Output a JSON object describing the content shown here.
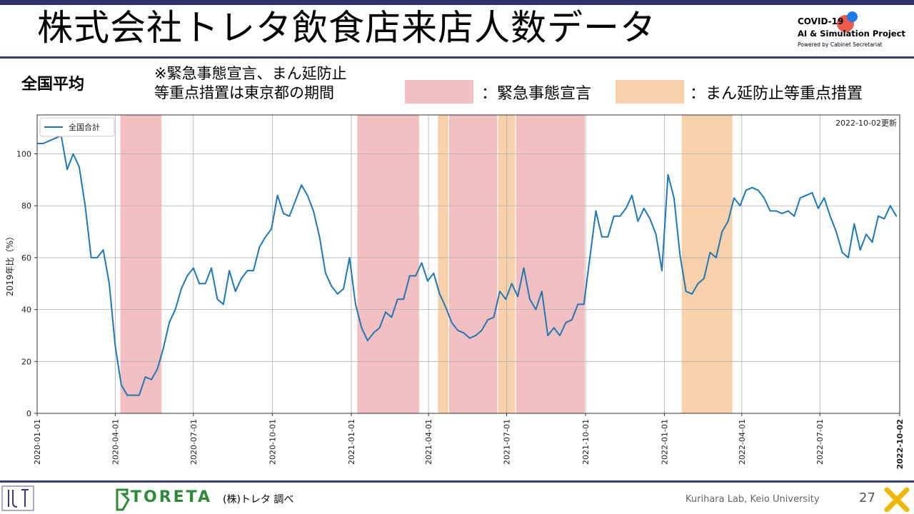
{
  "header": {
    "title": "株式会社トレタ飲食店来店人数データ",
    "covid_logo": {
      "line1": "COVID-19",
      "line2": "AI & Simulation Project",
      "line3": "Powered by Cabinet Secretariat"
    }
  },
  "region_label": "全国平均",
  "note_lines": [
    "※緊急事態宣言、まん延防止",
    "等重点措置は東京都の期間"
  ],
  "legend": {
    "emergency_label": "：緊急事態宣言",
    "emergency_color": "#f4bfc2",
    "semi_label": "：まん延防止等重点措置",
    "semi_color": "#f8d1ac"
  },
  "chart_data": {
    "type": "line",
    "series": [
      {
        "name": "全国合計",
        "color": "#1f77b4",
        "points": [
          [
            "2020-01-01",
            104
          ],
          [
            "2020-01-08",
            104
          ],
          [
            "2020-01-15",
            105
          ],
          [
            "2020-01-22",
            106
          ],
          [
            "2020-01-29",
            107
          ],
          [
            "2020-02-05",
            94
          ],
          [
            "2020-02-12",
            100
          ],
          [
            "2020-02-19",
            95
          ],
          [
            "2020-02-26",
            80
          ],
          [
            "2020-03-04",
            60
          ],
          [
            "2020-03-11",
            60
          ],
          [
            "2020-03-18",
            63
          ],
          [
            "2020-03-25",
            50
          ],
          [
            "2020-04-01",
            26
          ],
          [
            "2020-04-08",
            11
          ],
          [
            "2020-04-15",
            7
          ],
          [
            "2020-04-22",
            7
          ],
          [
            "2020-04-29",
            7
          ],
          [
            "2020-05-06",
            14
          ],
          [
            "2020-05-13",
            13
          ],
          [
            "2020-05-20",
            17
          ],
          [
            "2020-05-27",
            25
          ],
          [
            "2020-06-03",
            35
          ],
          [
            "2020-06-10",
            40
          ],
          [
            "2020-06-17",
            48
          ],
          [
            "2020-06-24",
            53
          ],
          [
            "2020-07-01",
            56
          ],
          [
            "2020-07-08",
            50
          ],
          [
            "2020-07-15",
            50
          ],
          [
            "2020-07-22",
            56
          ],
          [
            "2020-07-29",
            44
          ],
          [
            "2020-08-05",
            42
          ],
          [
            "2020-08-12",
            55
          ],
          [
            "2020-08-19",
            47
          ],
          [
            "2020-08-26",
            52
          ],
          [
            "2020-09-02",
            55
          ],
          [
            "2020-09-09",
            55
          ],
          [
            "2020-09-16",
            64
          ],
          [
            "2020-09-23",
            68
          ],
          [
            "2020-09-30",
            71
          ],
          [
            "2020-10-07",
            84
          ],
          [
            "2020-10-14",
            77
          ],
          [
            "2020-10-21",
            76
          ],
          [
            "2020-10-28",
            82
          ],
          [
            "2020-11-04",
            88
          ],
          [
            "2020-11-11",
            84
          ],
          [
            "2020-11-18",
            78
          ],
          [
            "2020-11-25",
            68
          ],
          [
            "2020-12-02",
            54
          ],
          [
            "2020-12-09",
            49
          ],
          [
            "2020-12-16",
            46
          ],
          [
            "2020-12-23",
            48
          ],
          [
            "2020-12-30",
            60
          ],
          [
            "2021-01-06",
            42
          ],
          [
            "2021-01-13",
            33
          ],
          [
            "2021-01-20",
            28
          ],
          [
            "2021-01-27",
            31
          ],
          [
            "2021-02-03",
            33
          ],
          [
            "2021-02-10",
            39
          ],
          [
            "2021-02-17",
            37
          ],
          [
            "2021-02-24",
            44
          ],
          [
            "2021-03-03",
            44
          ],
          [
            "2021-03-10",
            53
          ],
          [
            "2021-03-17",
            53
          ],
          [
            "2021-03-24",
            58
          ],
          [
            "2021-03-31",
            51
          ],
          [
            "2021-04-07",
            54
          ],
          [
            "2021-04-14",
            46
          ],
          [
            "2021-04-21",
            41
          ],
          [
            "2021-04-28",
            35
          ],
          [
            "2021-05-05",
            32
          ],
          [
            "2021-05-12",
            31
          ],
          [
            "2021-05-19",
            29
          ],
          [
            "2021-05-26",
            30
          ],
          [
            "2021-06-02",
            32
          ],
          [
            "2021-06-09",
            36
          ],
          [
            "2021-06-16",
            37
          ],
          [
            "2021-06-23",
            47
          ],
          [
            "2021-06-30",
            44
          ],
          [
            "2021-07-07",
            50
          ],
          [
            "2021-07-14",
            45
          ],
          [
            "2021-07-21",
            56
          ],
          [
            "2021-07-28",
            44
          ],
          [
            "2021-08-04",
            40
          ],
          [
            "2021-08-11",
            47
          ],
          [
            "2021-08-18",
            30
          ],
          [
            "2021-08-25",
            33
          ],
          [
            "2021-09-01",
            30
          ],
          [
            "2021-09-08",
            35
          ],
          [
            "2021-09-15",
            36
          ],
          [
            "2021-09-22",
            42
          ],
          [
            "2021-09-29",
            42
          ],
          [
            "2021-10-06",
            60
          ],
          [
            "2021-10-13",
            78
          ],
          [
            "2021-10-20",
            68
          ],
          [
            "2021-10-27",
            68
          ],
          [
            "2021-11-03",
            76
          ],
          [
            "2021-11-10",
            76
          ],
          [
            "2021-11-17",
            79
          ],
          [
            "2021-11-24",
            84
          ],
          [
            "2021-12-01",
            74
          ],
          [
            "2021-12-08",
            79
          ],
          [
            "2021-12-15",
            75
          ],
          [
            "2021-12-22",
            69
          ],
          [
            "2021-12-29",
            55
          ],
          [
            "2022-01-05",
            92
          ],
          [
            "2022-01-12",
            83
          ],
          [
            "2022-01-19",
            61
          ],
          [
            "2022-01-26",
            47
          ],
          [
            "2022-02-02",
            46
          ],
          [
            "2022-02-09",
            50
          ],
          [
            "2022-02-16",
            52
          ],
          [
            "2022-02-23",
            62
          ],
          [
            "2022-03-02",
            60
          ],
          [
            "2022-03-09",
            70
          ],
          [
            "2022-03-16",
            74
          ],
          [
            "2022-03-23",
            83
          ],
          [
            "2022-03-30",
            80
          ],
          [
            "2022-04-06",
            86
          ],
          [
            "2022-04-13",
            87
          ],
          [
            "2022-04-20",
            86
          ],
          [
            "2022-04-27",
            83
          ],
          [
            "2022-05-04",
            78
          ],
          [
            "2022-05-11",
            78
          ],
          [
            "2022-05-18",
            77
          ],
          [
            "2022-05-25",
            78
          ],
          [
            "2022-06-01",
            76
          ],
          [
            "2022-06-08",
            83
          ],
          [
            "2022-06-15",
            84
          ],
          [
            "2022-06-22",
            85
          ],
          [
            "2022-06-29",
            79
          ],
          [
            "2022-07-06",
            83
          ],
          [
            "2022-07-13",
            76
          ],
          [
            "2022-07-20",
            70
          ],
          [
            "2022-07-27",
            62
          ],
          [
            "2022-08-03",
            60
          ],
          [
            "2022-08-10",
            73
          ],
          [
            "2022-08-17",
            63
          ],
          [
            "2022-08-24",
            69
          ],
          [
            "2022-08-31",
            66
          ],
          [
            "2022-09-07",
            76
          ],
          [
            "2022-09-14",
            75
          ],
          [
            "2022-09-21",
            80
          ],
          [
            "2022-09-28",
            76
          ]
        ]
      }
    ],
    "shaded_periods": [
      {
        "kind": "emergency",
        "start": "2020-04-07",
        "end": "2020-05-25"
      },
      {
        "kind": "emergency",
        "start": "2021-01-08",
        "end": "2021-03-21"
      },
      {
        "kind": "semi",
        "start": "2021-04-12",
        "end": "2021-04-24"
      },
      {
        "kind": "emergency",
        "start": "2021-04-25",
        "end": "2021-06-20"
      },
      {
        "kind": "semi",
        "start": "2021-06-21",
        "end": "2021-07-11"
      },
      {
        "kind": "emergency",
        "start": "2021-07-12",
        "end": "2021-09-30"
      },
      {
        "kind": "semi",
        "start": "2022-01-21",
        "end": "2022-03-21"
      }
    ],
    "ylabel": "2019年比（%）",
    "ylim": [
      0,
      115
    ],
    "yticks": [
      0,
      20,
      40,
      60,
      80,
      100
    ],
    "xlim": [
      "2020-01-01",
      "2022-10-02"
    ],
    "xticks": [
      "2020-01-01",
      "2020-04-01",
      "2020-07-01",
      "2020-10-01",
      "2021-01-01",
      "2021-04-01",
      "2021-07-01",
      "2021-10-01",
      "2022-01-01",
      "2022-04-01",
      "2022-07-01",
      "2022-10-02"
    ],
    "grid": true,
    "legend_position": "top-left",
    "update_note": "2022-10-02更新"
  },
  "footer": {
    "brand": "TORETA",
    "source": "(株)トレタ 調べ",
    "lab": "Kurihara Lab, Keio University",
    "page": "27"
  }
}
